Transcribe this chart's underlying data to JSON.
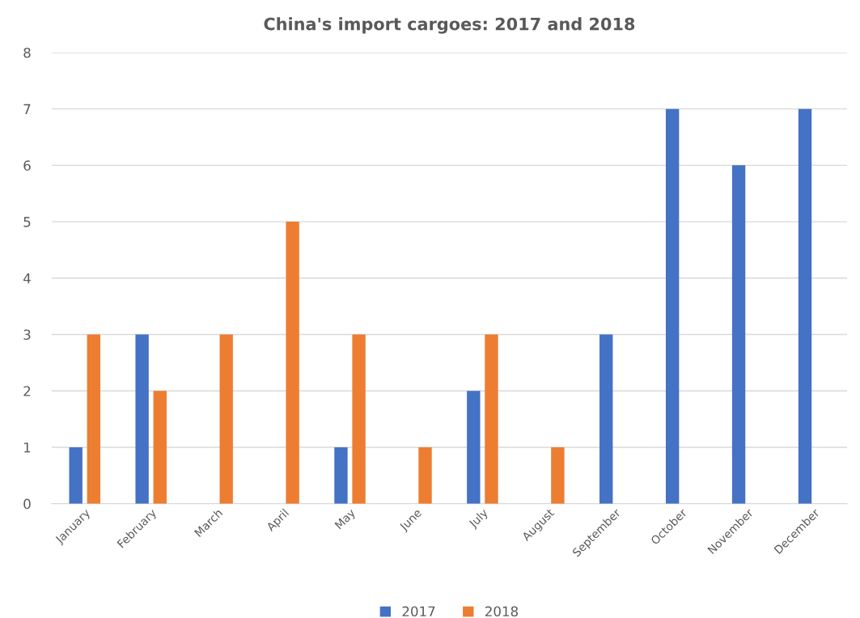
{
  "chart_data": {
    "type": "bar",
    "title": "China's import cargoes: 2017 and 2018",
    "categories": [
      "January",
      "February",
      "March",
      "April",
      "May",
      "June",
      "July",
      "August",
      "September",
      "October",
      "November",
      "December"
    ],
    "series": [
      {
        "name": "2017",
        "color": "#4472c4",
        "values": [
          1,
          3,
          0,
          0,
          1,
          0,
          2,
          0,
          3,
          7,
          6,
          7
        ]
      },
      {
        "name": "2018",
        "color": "#ed7d31",
        "values": [
          3,
          2,
          3,
          5,
          3,
          1,
          3,
          1,
          0,
          0,
          0,
          0
        ]
      }
    ],
    "ylim": [
      0,
      8
    ],
    "yticks": [
      0,
      1,
      2,
      3,
      4,
      5,
      6,
      7,
      8
    ],
    "grid": "y",
    "legend": "bottom"
  }
}
